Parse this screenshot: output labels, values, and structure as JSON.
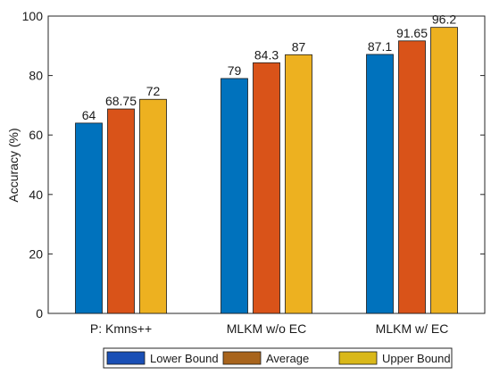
{
  "chart_data": {
    "type": "bar",
    "categories": [
      "P: Kmns++",
      "MLKM w/o EC",
      "MLKM w/ EC"
    ],
    "series": [
      {
        "name": "Lower Bound",
        "values": [
          64,
          79,
          87.1
        ],
        "labels": [
          "64",
          "79",
          "87.1"
        ],
        "color": "#0072BD"
      },
      {
        "name": "Average",
        "values": [
          68.75,
          84.3,
          91.65
        ],
        "labels": [
          "68.75",
          "84.3",
          "91.65"
        ],
        "color": "#D95319"
      },
      {
        "name": "Upper Bound",
        "values": [
          72,
          87,
          96.2
        ],
        "labels": [
          "72",
          "87",
          "96.2"
        ],
        "color": "#EDB120"
      }
    ],
    "legend_colors": [
      "#1a4fb5",
      "#a8641c",
      "#d9b81a"
    ],
    "title": "",
    "xlabel": "",
    "ylabel": "Accuracy (%)",
    "ylim": [
      0,
      100
    ],
    "yticks": [
      0,
      20,
      40,
      60,
      80,
      100
    ],
    "grid": false,
    "legend_position": "bottom"
  }
}
